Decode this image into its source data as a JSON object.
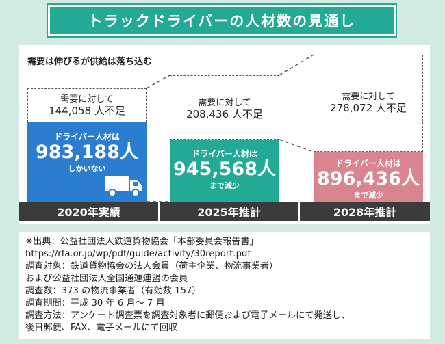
{
  "title": "トラックドライバーの人材数の見通し",
  "subtitle": "需要は伸びるが供給は落ち込む",
  "chart_data": {
    "type": "bar",
    "categories": [
      "2020年実績",
      "2025年推計",
      "2028年推計"
    ],
    "series": [
      {
        "values": [
          983188,
          945568,
          896436
        ]
      },
      {
        "values": [
          144058,
          208436,
          278072
        ]
      }
    ],
    "bar_labels": [
      {
        "top": "ドライバー人材は",
        "value": "983,188人",
        "note": "しかいない"
      },
      {
        "top": "ドライバー人材は",
        "value": "945,568人",
        "note": "まで減少"
      },
      {
        "top": "ドライバー人材は",
        "value": "896,436人",
        "note": "まで減少"
      }
    ],
    "shortage_labels": [
      {
        "line1": "需要に対して",
        "line2": "144,058 人不足"
      },
      {
        "line1": "需要に対して",
        "line2": "208,436 人不足"
      },
      {
        "line1": "需要に対して",
        "line2": "278,072 人不足"
      }
    ],
    "colors": [
      "#2a7dcf",
      "#22aa95",
      "#d9848f"
    ],
    "gap_border_color": "#555555",
    "year_band_color": "#3b3b3b"
  },
  "source": {
    "lines": [
      "※出典：公益社団法人鉄道貨物協会「本部委員会報告書」",
      "https://rfa.or.jp/wp/pdf/guide/activity/30report.pdf",
      "調査対象：鉄道貨物協会の法人会員（荷主企業、物流事業者）",
      "および公益社団法人全国通運連盟の会員",
      "調査数：373 の物流事業者（有効数 157）",
      "調査期間：平成 30 年 6 月～ 7 月",
      "調査方法：アンケート調査票を調査対象者に郵便および電子メールにて発送し、",
      "後日郵便、FAX、電子メールにて回収"
    ]
  }
}
